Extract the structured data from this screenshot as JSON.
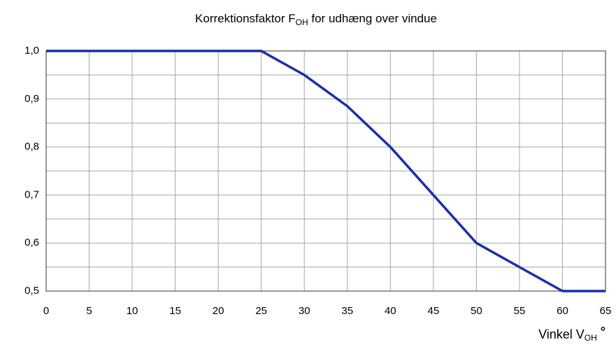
{
  "chart_data": {
    "type": "line",
    "title": [
      "Korrektionsfaktor  F",
      "OH",
      "  for udhæng over vindue"
    ],
    "x_label": [
      "Vinkel V",
      "OH",
      " °"
    ],
    "x": [
      0,
      25,
      30,
      35,
      40,
      45,
      50,
      55,
      60,
      65
    ],
    "series": [
      {
        "name": "FOH",
        "color": "#1a2ea6",
        "values": [
          1.0,
          1.0,
          0.95,
          0.885,
          0.8,
          0.7,
          0.6,
          0.55,
          0.5,
          0.5
        ]
      }
    ],
    "xlim": [
      0,
      65
    ],
    "xticks": [
      0,
      5,
      10,
      15,
      20,
      25,
      30,
      35,
      40,
      45,
      50,
      55,
      60,
      65
    ],
    "ylim": [
      0.5,
      1.0
    ],
    "yticks": [
      {
        "value": 0.5,
        "label": "0,5"
      },
      {
        "value": 0.6,
        "label": "0,6"
      },
      {
        "value": 0.7,
        "label": "0,7"
      },
      {
        "value": 0.8,
        "label": "0,8"
      },
      {
        "value": 0.9,
        "label": "0,9"
      },
      {
        "value": 1.0,
        "label": "1,0"
      }
    ],
    "yminor": [
      0.55,
      0.65,
      0.75,
      0.85,
      0.95
    ],
    "grid": true
  }
}
